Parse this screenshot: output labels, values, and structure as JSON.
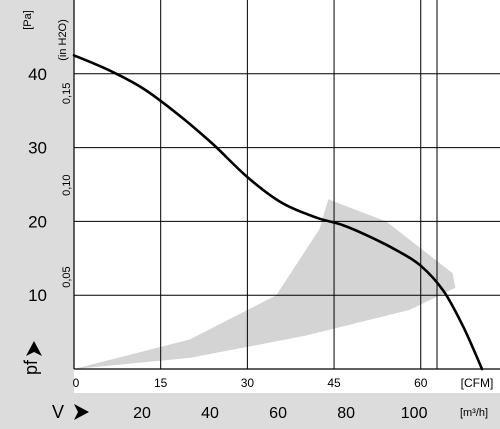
{
  "chart_data": {
    "type": "line",
    "title": "",
    "y_primary": {
      "unit": "[Pa]",
      "symbol": "pf",
      "range": [
        0,
        50
      ],
      "ticks": [
        10,
        20,
        30,
        40
      ]
    },
    "y_secondary": {
      "unit": "(in H2O)",
      "ticks": [
        {
          "label": "0,05",
          "pa": 12.45
        },
        {
          "label": "0,10",
          "pa": 24.9
        },
        {
          "label": "0,15",
          "pa": 37.35
        }
      ]
    },
    "x_primary": {
      "unit": "[CFM]",
      "range": [
        0,
        70.6
      ],
      "ticks": [
        0,
        15,
        30,
        45,
        60
      ]
    },
    "x_secondary": {
      "unit": "[m³/h]",
      "symbol": "V",
      "ticks": [
        20,
        40,
        60,
        80,
        100
      ]
    },
    "grid": true,
    "series": [
      {
        "x": [
          0,
          6,
          12,
          18,
          24,
          30,
          36,
          42,
          46.5,
          51,
          56,
          60,
          64,
          67.5,
          70.6
        ],
        "y": [
          42.5,
          40.5,
          38,
          34.5,
          30.5,
          26,
          22.5,
          20.5,
          19.5,
          18,
          16,
          14,
          10.5,
          5.5,
          0
        ]
      }
    ],
    "shaded_region": {
      "label": "",
      "boundary_x": [
        0,
        20,
        35,
        42.5,
        44,
        54,
        65.5,
        66,
        58,
        40,
        20,
        0
      ],
      "boundary_y": [
        0,
        4,
        10,
        19,
        23,
        20,
        13,
        11,
        8,
        4.5,
        1.5,
        0
      ]
    }
  }
}
